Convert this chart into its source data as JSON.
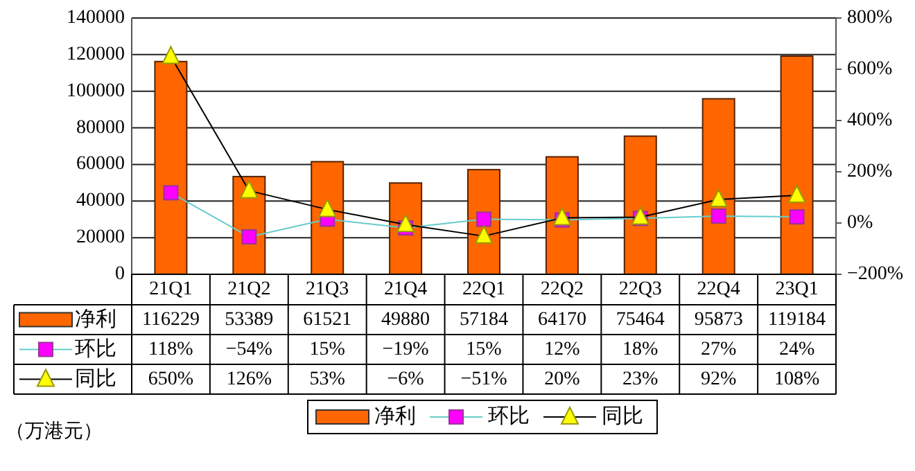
{
  "chart_data": {
    "type": "bar",
    "categories": [
      "21Q1",
      "21Q2",
      "21Q3",
      "21Q4",
      "22Q1",
      "22Q2",
      "22Q3",
      "22Q4",
      "23Q1"
    ],
    "series": [
      {
        "name": "净利",
        "color": "#ff6600",
        "values": [
          116229,
          53389,
          61521,
          49880,
          57184,
          64170,
          75464,
          95873,
          119184
        ],
        "value_labels": [
          "116229",
          "53389",
          "61521",
          "49880",
          "57184",
          "64170",
          "75464",
          "95873",
          "119184"
        ]
      },
      {
        "name": "环比",
        "type": "line",
        "axis": "y2",
        "marker": "square",
        "color": "#ff00ff",
        "values": [
          118,
          -54,
          15,
          -19,
          15,
          12,
          18,
          27,
          24
        ],
        "value_labels": [
          "118%",
          "−54%",
          "15%",
          "−19%",
          "15%",
          "12%",
          "18%",
          "27%",
          "24%"
        ]
      },
      {
        "name": "同比",
        "type": "line",
        "axis": "y2",
        "marker": "triangle",
        "color": "#ffff00",
        "values": [
          650,
          126,
          53,
          -6,
          -51,
          20,
          23,
          92,
          108
        ],
        "value_labels": [
          "650%",
          "126%",
          "53%",
          "−6%",
          "−51%",
          "20%",
          "23%",
          "92%",
          "108%"
        ]
      }
    ],
    "ylim": [
      0,
      140000
    ],
    "yticks": [
      0,
      20000,
      40000,
      60000,
      80000,
      100000,
      120000,
      140000
    ],
    "y2lim": [
      -200,
      800
    ],
    "y2ticks": [
      {
        "value": -200,
        "label": "−200%"
      },
      {
        "value": 0,
        "label": "0%"
      },
      {
        "value": 200,
        "label": "200%"
      },
      {
        "value": 400,
        "label": "400%"
      },
      {
        "value": 600,
        "label": "600%"
      },
      {
        "value": 800,
        "label": "800%"
      }
    ],
    "grid": "y",
    "legend": "bottom",
    "annotations": [
      "（万港元）"
    ]
  }
}
